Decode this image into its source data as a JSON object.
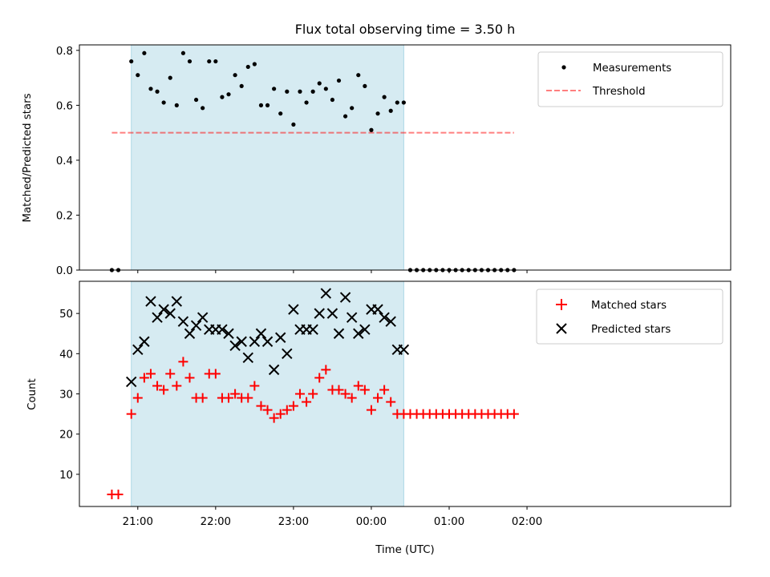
{
  "colors": {
    "observing_band": "#add8e6",
    "measurement": "#000000",
    "threshold": "#ff0000",
    "matched": "#ff0000",
    "predicted": "#000000"
  },
  "chart_data": [
    {
      "type": "scatter",
      "title": "Flux total observing time = 3.50 h",
      "xlabel": "",
      "ylabel": "Matched/Predicted stars",
      "ylim": [
        0,
        0.82
      ],
      "yticks": [
        0.0,
        0.2,
        0.4,
        0.6,
        0.8
      ],
      "ytick_labels": [
        "0.0",
        "0.2",
        "0.4",
        "0.6",
        "0.8"
      ],
      "legend_position": "top-right",
      "observing_window": {
        "start": "20:55",
        "end": "00:25"
      },
      "series": [
        {
          "name": "Measurements",
          "marker": "dot",
          "x": [
            "20:40",
            "20:45",
            "20:55",
            "21:00",
            "21:05",
            "21:10",
            "21:15",
            "21:20",
            "21:25",
            "21:30",
            "21:35",
            "21:40",
            "21:45",
            "21:50",
            "21:55",
            "22:00",
            "22:05",
            "22:10",
            "22:15",
            "22:20",
            "22:25",
            "22:30",
            "22:35",
            "22:40",
            "22:45",
            "22:50",
            "22:55",
            "23:00",
            "23:05",
            "23:10",
            "23:15",
            "23:20",
            "23:25",
            "23:30",
            "23:35",
            "23:40",
            "23:45",
            "23:50",
            "23:55",
            "00:00",
            "00:05",
            "00:10",
            "00:15",
            "00:20",
            "00:25",
            "00:30",
            "00:35",
            "00:40",
            "00:45",
            "00:50",
            "00:55",
            "01:00",
            "01:05",
            "01:10",
            "01:15",
            "01:20",
            "01:25",
            "01:30",
            "01:35",
            "01:40",
            "01:45",
            "01:50"
          ],
          "y": [
            0,
            0,
            0.76,
            0.71,
            0.79,
            0.66,
            0.65,
            0.61,
            0.7,
            0.6,
            0.79,
            0.76,
            0.62,
            0.59,
            0.76,
            0.76,
            0.63,
            0.64,
            0.71,
            0.67,
            0.74,
            0.75,
            0.6,
            0.6,
            0.66,
            0.57,
            0.65,
            0.53,
            0.65,
            0.61,
            0.65,
            0.68,
            0.66,
            0.62,
            0.69,
            0.56,
            0.59,
            0.71,
            0.67,
            0.51,
            0.57,
            0.63,
            0.58,
            0.61,
            0.61,
            0,
            0,
            0,
            0,
            0,
            0,
            0,
            0,
            0,
            0,
            0,
            0,
            0,
            0,
            0,
            0,
            0
          ]
        },
        {
          "name": "Threshold",
          "style": "dashed",
          "x": [
            "20:40",
            "01:50"
          ],
          "y": [
            0.5,
            0.5
          ]
        }
      ]
    },
    {
      "type": "scatter",
      "title": "",
      "xlabel": "Time (UTC)",
      "ylabel": "Count",
      "ylim": [
        2,
        58
      ],
      "yticks": [
        10,
        20,
        30,
        40,
        50
      ],
      "xticks": [
        "21:00",
        "22:00",
        "23:00",
        "00:00",
        "01:00",
        "02:00"
      ],
      "legend_position": "top-right",
      "observing_window": {
        "start": "20:55",
        "end": "00:25"
      },
      "series": [
        {
          "name": "Matched stars",
          "marker": "plus",
          "x": [
            "20:40",
            "20:45",
            "20:55",
            "21:00",
            "21:05",
            "21:10",
            "21:15",
            "21:20",
            "21:25",
            "21:30",
            "21:35",
            "21:40",
            "21:45",
            "21:50",
            "21:55",
            "22:00",
            "22:05",
            "22:10",
            "22:15",
            "22:20",
            "22:25",
            "22:30",
            "22:35",
            "22:40",
            "22:45",
            "22:50",
            "22:55",
            "23:00",
            "23:05",
            "23:10",
            "23:15",
            "23:20",
            "23:25",
            "23:30",
            "23:35",
            "23:40",
            "23:45",
            "23:50",
            "23:55",
            "00:00",
            "00:05",
            "00:10",
            "00:15",
            "00:20",
            "00:25",
            "00:30",
            "00:35",
            "00:40",
            "00:45",
            "00:50",
            "00:55",
            "01:00",
            "01:05",
            "01:10",
            "01:15",
            "01:20",
            "01:25",
            "01:30",
            "01:35",
            "01:40",
            "01:45",
            "01:50"
          ],
          "y": [
            5,
            5,
            25,
            29,
            34,
            35,
            32,
            31,
            35,
            32,
            38,
            34,
            29,
            29,
            35,
            35,
            29,
            29,
            30,
            29,
            29,
            32,
            27,
            26,
            24,
            25,
            26,
            27,
            30,
            28,
            30,
            34,
            36,
            31,
            31,
            30,
            29,
            32,
            31,
            26,
            29,
            31,
            28,
            25,
            25,
            25,
            25,
            25,
            25,
            25,
            25,
            25,
            25,
            25,
            25,
            25,
            25,
            25,
            25,
            25,
            25,
            25
          ]
        },
        {
          "name": "Predicted stars",
          "marker": "x",
          "x": [
            "20:55",
            "21:00",
            "21:05",
            "21:10",
            "21:15",
            "21:20",
            "21:25",
            "21:30",
            "21:35",
            "21:40",
            "21:45",
            "21:50",
            "21:55",
            "22:00",
            "22:05",
            "22:10",
            "22:15",
            "22:20",
            "22:25",
            "22:30",
            "22:35",
            "22:40",
            "22:45",
            "22:50",
            "22:55",
            "23:00",
            "23:05",
            "23:10",
            "23:15",
            "23:20",
            "23:25",
            "23:30",
            "23:35",
            "23:40",
            "23:45",
            "23:50",
            "23:55",
            "00:00",
            "00:05",
            "00:10",
            "00:15",
            "00:20",
            "00:25"
          ],
          "y": [
            33,
            41,
            43,
            53,
            49,
            51,
            50,
            53,
            48,
            45,
            47,
            49,
            46,
            46,
            46,
            45,
            42,
            43,
            39,
            43,
            45,
            43,
            36,
            44,
            40,
            51,
            46,
            46,
            46,
            50,
            55,
            50,
            45,
            54,
            49,
            45,
            46,
            51,
            51,
            49,
            48,
            41,
            41
          ]
        }
      ]
    }
  ]
}
